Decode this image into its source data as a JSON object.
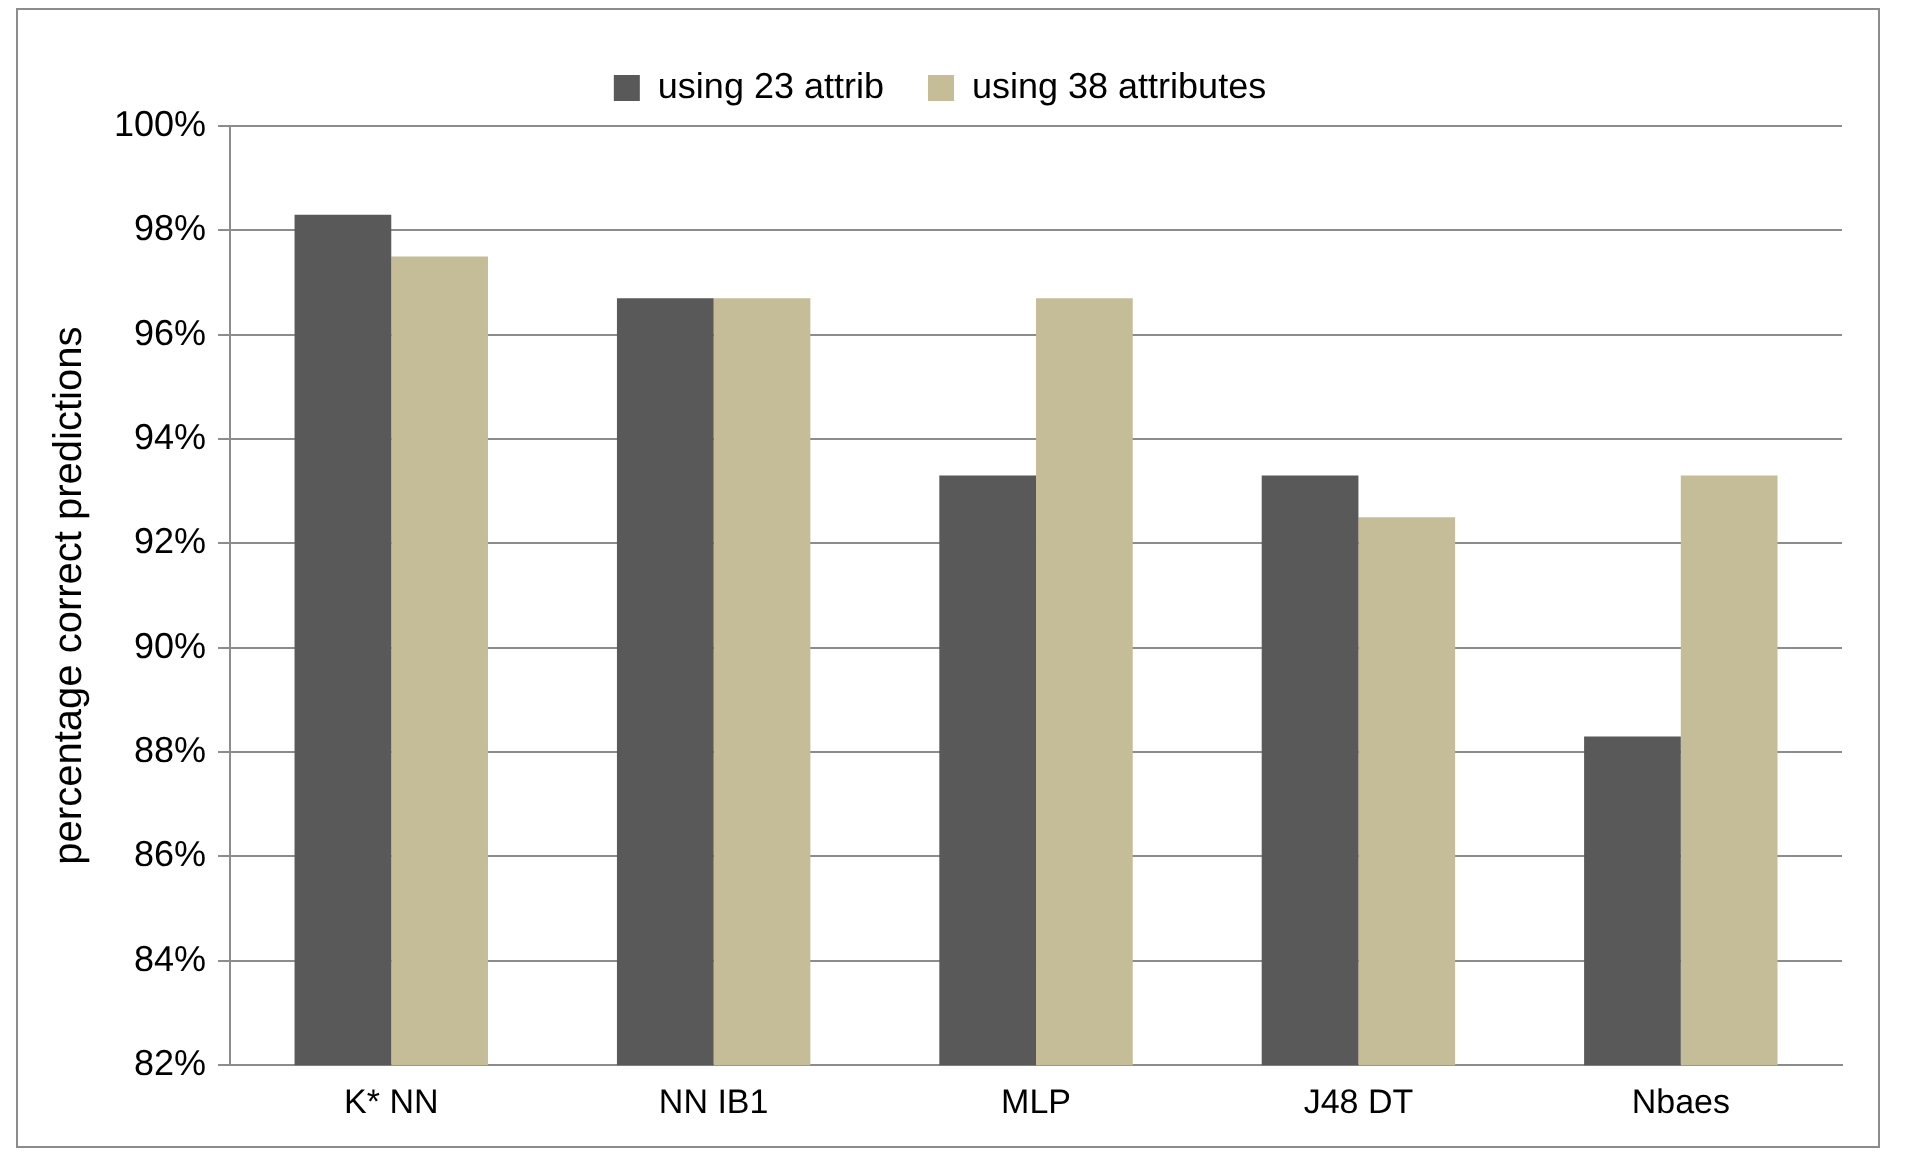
{
  "chart_data": {
    "type": "bar",
    "ylabel": "percentage correct predictions",
    "categories": [
      "K* NN",
      "NN IB1",
      "MLP",
      "J48 DT",
      "Nbaes"
    ],
    "series": [
      {
        "name": "using 23 attrib",
        "color": "#595959",
        "values": [
          98.3,
          96.7,
          93.3,
          93.3,
          88.3
        ]
      },
      {
        "name": "using 38 attributes",
        "color": "#c4bd97",
        "values": [
          97.5,
          96.7,
          96.7,
          92.5,
          93.3
        ]
      }
    ],
    "ylim": [
      82,
      100
    ],
    "yticks": [
      {
        "value": 82,
        "label": "82%"
      },
      {
        "value": 84,
        "label": "84%"
      },
      {
        "value": 86,
        "label": "86%"
      },
      {
        "value": 88,
        "label": "88%"
      },
      {
        "value": 90,
        "label": "90%"
      },
      {
        "value": 92,
        "label": "92%"
      },
      {
        "value": 94,
        "label": "94%"
      },
      {
        "value": 96,
        "label": "96%"
      },
      {
        "value": 98,
        "label": "98%"
      },
      {
        "value": 100,
        "label": "100%"
      }
    ],
    "grid": "y",
    "legend": "top"
  }
}
